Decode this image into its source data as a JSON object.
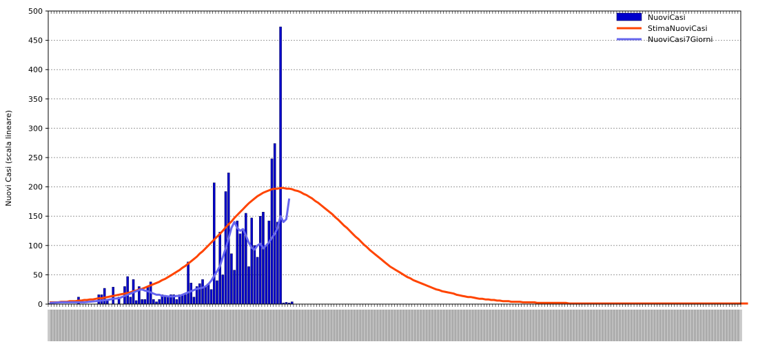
{
  "chart_data": {
    "type": "bar",
    "ylabel": "Nuovi Casi (scala lineare)",
    "ylim": [
      0,
      500
    ],
    "yticks": [
      0,
      50,
      100,
      150,
      200,
      250,
      300,
      350,
      400,
      450,
      500
    ],
    "grid": true,
    "legend_position": "top-right",
    "x_count": 240,
    "x_labels_note": "date labels rotated 90°, illegible in source",
    "series": [
      {
        "name": "NuoviCasi",
        "type": "bar",
        "color": "#0000cc",
        "x": [
          0,
          10,
          17,
          18,
          19,
          20,
          22,
          24,
          26,
          27,
          28,
          29,
          30,
          31,
          32,
          33,
          34,
          35,
          36,
          37,
          38,
          39,
          40,
          41,
          42,
          43,
          44,
          45,
          46,
          47,
          48,
          49,
          50,
          51,
          52,
          53,
          54,
          55,
          56,
          57,
          58,
          59,
          60,
          61,
          62,
          63,
          64,
          65,
          66,
          67,
          68,
          69,
          70,
          71,
          72,
          73,
          74,
          75,
          76,
          77,
          78,
          79,
          80,
          81,
          82,
          83,
          84
        ],
        "values": [
          1,
          12,
          16,
          16,
          27,
          8,
          29,
          12,
          30,
          47,
          12,
          42,
          6,
          30,
          8,
          8,
          30,
          38,
          8,
          4,
          8,
          16,
          12,
          12,
          16,
          16,
          8,
          16,
          16,
          16,
          72,
          36,
          12,
          30,
          35,
          42,
          30,
          35,
          25,
          207,
          40,
          123,
          50,
          192,
          224,
          86,
          58,
          142,
          120,
          125,
          155,
          64,
          147,
          100,
          80,
          150,
          157,
          100,
          142,
          248,
          274,
          140,
          473,
          2,
          3,
          2,
          4
        ],
        "note": "bar heights estimated; final bars after peak near-zero (padding removed)"
      },
      {
        "name": "StimaNuoviCasi",
        "type": "line",
        "color": "#ff4400",
        "x_range": [
          0,
          239
        ],
        "peak": {
          "x": 90,
          "value": 197
        },
        "values": [
          3,
          3,
          3,
          3,
          4,
          4,
          4,
          5,
          5,
          5,
          6,
          6,
          7,
          7,
          8,
          8,
          9,
          10,
          10,
          11,
          12,
          13,
          14,
          15,
          16,
          17,
          18,
          19,
          20,
          22,
          23,
          25,
          26,
          28,
          30,
          32,
          34,
          36,
          38,
          41,
          43,
          46,
          49,
          52,
          55,
          58,
          62,
          65,
          69,
          73,
          77,
          81,
          86,
          90,
          95,
          100,
          105,
          110,
          115,
          120,
          125,
          131,
          136,
          141,
          147,
          152,
          157,
          162,
          167,
          172,
          176,
          180,
          184,
          187,
          190,
          192,
          194,
          196,
          197,
          197,
          198,
          198,
          197,
          197,
          196,
          194,
          193,
          191,
          188,
          186,
          183,
          180,
          176,
          173,
          169,
          165,
          161,
          157,
          153,
          148,
          144,
          139,
          134,
          130,
          125,
          120,
          115,
          111,
          106,
          101,
          97,
          92,
          88,
          84,
          80,
          76,
          72,
          68,
          64,
          61,
          58,
          55,
          52,
          49,
          46,
          44,
          41,
          39,
          37,
          35,
          33,
          31,
          29,
          27,
          25,
          24,
          22,
          21,
          20,
          19,
          18,
          16,
          15,
          14,
          13,
          12,
          12,
          11,
          10,
          9,
          9,
          8,
          8,
          7,
          7,
          6,
          6,
          5,
          5,
          5,
          4,
          4,
          4,
          4,
          3,
          3,
          3,
          3,
          3,
          2,
          2,
          2,
          2,
          2,
          2,
          2,
          2,
          2,
          2,
          2,
          1,
          1,
          1,
          1,
          1,
          1,
          1,
          1,
          1,
          1,
          1,
          1,
          1,
          1,
          1,
          1,
          1,
          1,
          1,
          1,
          1,
          1,
          1,
          1,
          1,
          1,
          1,
          1,
          1,
          1,
          1,
          1,
          1,
          1,
          1,
          1,
          1,
          1,
          1,
          1,
          1,
          1,
          1,
          1,
          1,
          1,
          1,
          1,
          1,
          1,
          1,
          1,
          1,
          1,
          1,
          1,
          1,
          1,
          1,
          1,
          1,
          1,
          1
        ]
      },
      {
        "name": "NuoviCasi7Giorni",
        "type": "line",
        "color": "#6666ee",
        "x": [
          0,
          4,
          8,
          12,
          16,
          18,
          20,
          22,
          24,
          25,
          26,
          27,
          28,
          29,
          30,
          31,
          32,
          33,
          34,
          35,
          36,
          37,
          38,
          39,
          40,
          41,
          42,
          43,
          44,
          45,
          46,
          47,
          48,
          49,
          50,
          51,
          52,
          53,
          54,
          55,
          56,
          57,
          58,
          59,
          60,
          61,
          62,
          63,
          64,
          65,
          66,
          67,
          68,
          69,
          70,
          71,
          72,
          73,
          74,
          75,
          76,
          77,
          78,
          79,
          80,
          81,
          82,
          83
        ],
        "values": [
          2,
          3,
          3,
          3,
          5,
          6,
          7,
          9,
          10,
          12,
          14,
          16,
          18,
          20,
          22,
          24,
          25,
          23,
          22,
          20,
          18,
          16,
          16,
          14,
          14,
          13,
          13,
          13,
          14,
          14,
          16,
          18,
          20,
          22,
          24,
          26,
          27,
          28,
          30,
          34,
          40,
          48,
          56,
          65,
          80,
          95,
          112,
          130,
          140,
          130,
          125,
          128,
          117,
          105,
          96,
          93,
          100,
          103,
          95,
          100,
          105,
          113,
          120,
          130,
          150,
          140,
          145,
          180
        ]
      }
    ]
  }
}
